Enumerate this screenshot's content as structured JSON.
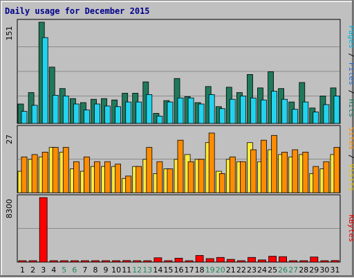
{
  "chart_data": {
    "type": "bar",
    "title": "Daily usage for December 2015",
    "categories": [
      "1",
      "2",
      "3",
      "4",
      "5",
      "6",
      "7",
      "8",
      "9",
      "10",
      "11",
      "12",
      "13",
      "14",
      "15",
      "16",
      "17",
      "18",
      "19",
      "20",
      "21",
      "22",
      "23",
      "24",
      "25",
      "26",
      "27",
      "28",
      "29",
      "30",
      "31"
    ],
    "weekend_days": [
      "5",
      "6",
      "12",
      "13",
      "19",
      "20",
      "26",
      "27"
    ],
    "panels": [
      {
        "ymax_label": "151",
        "ymax": 151,
        "series": [
          {
            "name": "Hits",
            "color": "#1f7a5c",
            "values": [
              29,
              46,
              151,
              84,
              52,
              37,
              31,
              36,
              37,
              35,
              45,
              45,
              62,
              15,
              34,
              67,
              40,
              31,
              55,
              25,
              54,
              46,
              73,
              53,
              77,
              52,
              32,
              61,
              23,
              41,
              53
            ]
          },
          {
            "name": "Files",
            "color": "#2a93c8",
            "values": [
              0,
              0,
              0,
              0,
              0,
              0,
              0,
              0,
              0,
              0,
              0,
              0,
              0,
              0,
              0,
              0,
              0,
              0,
              0,
              0,
              0,
              0,
              0,
              0,
              0,
              0,
              0,
              0,
              0,
              0,
              0
            ]
          },
          {
            "name": "Pages",
            "color": "#22d3ee",
            "values": [
              18,
              27,
              128,
              42,
              41,
              29,
              20,
              29,
              26,
              25,
              32,
              32,
              43,
              11,
              32,
              38,
              38,
              29,
              43,
              22,
              36,
              41,
              38,
              35,
              48,
              36,
              21,
              32,
              17,
              28,
              41
            ]
          }
        ],
        "side_label": [
          {
            "text": "Pages",
            "color": "#00b4d8"
          },
          {
            "text": " / ",
            "color": "#000000"
          },
          {
            "text": "Files",
            "color": "#2a6cc8"
          },
          {
            "text": " / ",
            "color": "#000000"
          },
          {
            "text": "Hits",
            "color": "#1f7a5c"
          }
        ]
      },
      {
        "ymax_label": "27",
        "ymax": 27,
        "series": [
          {
            "name": "Visits",
            "color": "#ffeb3b",
            "values": [
              9,
              14,
              15,
              19,
              17,
              10,
              9,
              11,
              11,
              11,
              6,
              11,
              14,
              8,
              10,
              14,
              16,
              14,
              21,
              9,
              14,
              13,
              21,
              13,
              18,
              16,
              15,
              16,
              8,
              10,
              16
            ]
          },
          {
            "name": "Sites",
            "color": "#ff8c00",
            "values": [
              15,
              16,
              17,
              19,
              19,
              13,
              15,
              13,
              13,
              12,
              7,
              11,
              19,
              13,
              10,
              22,
              13,
              14,
              25,
              8,
              15,
              13,
              18,
              22,
              24,
              17,
              18,
              17,
              11,
              13,
              19
            ]
          }
        ],
        "side_label": [
          {
            "text": "Sites",
            "color": "#ff8c00"
          },
          {
            "text": " / ",
            "color": "#000000"
          },
          {
            "text": "Visits",
            "color": "#e6c200"
          }
        ]
      },
      {
        "ymax_label": "8300",
        "ymax": 8300,
        "series": [
          {
            "name": "KBytes",
            "color": "#ff0000",
            "values": [
              60,
              50,
              8300,
              60,
              70,
              70,
              60,
              60,
              60,
              50,
              200,
              60,
              70,
              550,
              120,
              500,
              100,
              850,
              450,
              600,
              350,
              80,
              600,
              280,
              750,
              700,
              80,
              90,
              650,
              60,
              200
            ]
          }
        ],
        "side_label": [
          {
            "text": "KBytes",
            "color": "#e00000"
          }
        ]
      }
    ]
  }
}
